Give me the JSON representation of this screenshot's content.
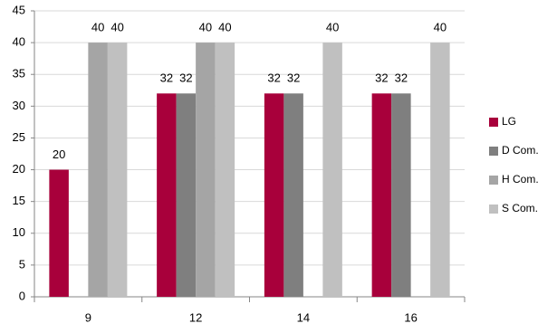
{
  "chart_data": {
    "type": "bar",
    "categories": [
      "9",
      "12",
      "14",
      "16"
    ],
    "series": [
      {
        "name": "LG",
        "color": "#a8003b",
        "values": [
          20,
          32,
          32,
          32
        ]
      },
      {
        "name": "D Com.",
        "color": "#7f7f7f",
        "values": [
          null,
          32,
          32,
          32
        ]
      },
      {
        "name": "H Com.",
        "color": "#a5a5a5",
        "values": [
          40,
          40,
          null,
          null
        ]
      },
      {
        "name": "S Com.",
        "color": "#c0c0c0",
        "values": [
          40,
          40,
          40,
          40
        ]
      }
    ],
    "ylim": [
      0,
      45
    ],
    "yticks": [
      0,
      5,
      10,
      15,
      20,
      25,
      30,
      35,
      40,
      45
    ],
    "grid": true,
    "legend": "right"
  }
}
